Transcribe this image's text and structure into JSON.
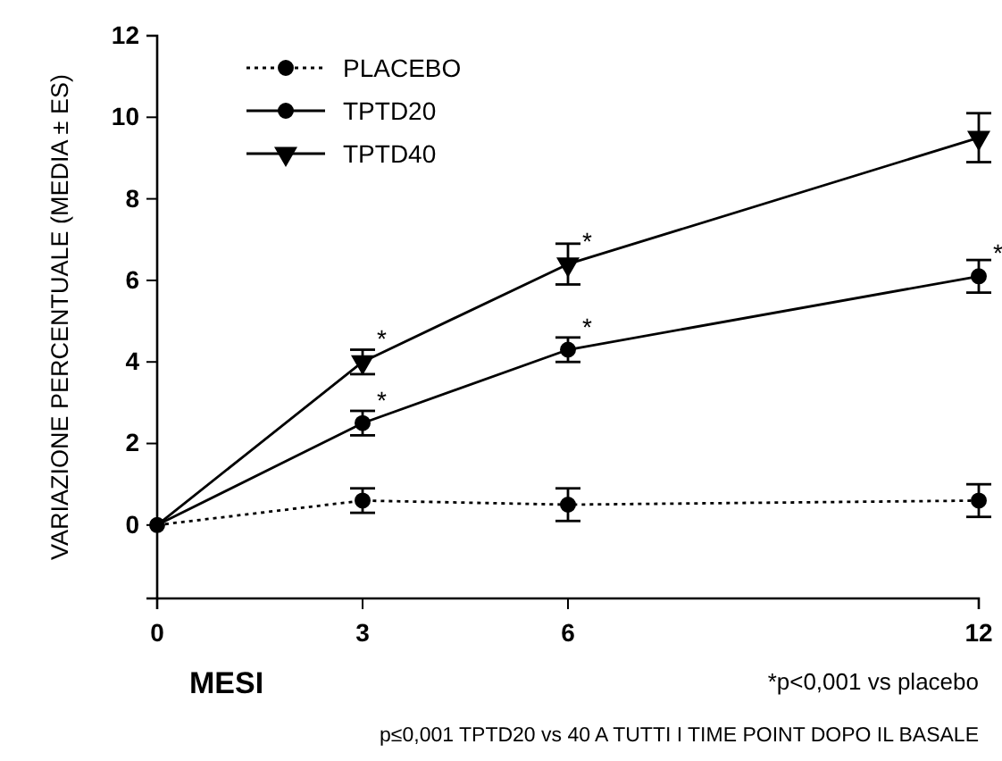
{
  "chart_data": {
    "type": "line",
    "xlabel": "MESI",
    "ylabel": "VARIAZIONE PERCENTUALE (MEDIA ± ES)",
    "x": [
      0,
      3,
      6,
      12
    ],
    "xlim": [
      0,
      12
    ],
    "xticks": [
      0,
      3,
      6,
      12
    ],
    "ylim": [
      -1.8,
      12
    ],
    "yticks": [
      0,
      2,
      4,
      6,
      8,
      10,
      12
    ],
    "grid": false,
    "legend": "top left",
    "series": [
      {
        "name": "PLACEBO",
        "color": "#000000",
        "marker": "circle",
        "line_style": "dotted",
        "values": [
          0,
          0.6,
          0.5,
          0.6
        ],
        "errors": [
          null,
          0.3,
          0.4,
          0.4
        ]
      },
      {
        "name": "TPTD20",
        "color": "#000000",
        "marker": "circle",
        "line_style": "solid",
        "values": [
          0,
          2.5,
          4.3,
          6.1
        ],
        "errors": [
          null,
          0.3,
          0.3,
          0.4
        ]
      },
      {
        "name": "TPTD40",
        "color": "#000000",
        "marker": "triangle",
        "line_style": "solid",
        "values": [
          0,
          4.0,
          6.4,
          9.5
        ],
        "errors": [
          null,
          0.3,
          0.5,
          0.6
        ]
      }
    ],
    "annotations": [
      {
        "text": "*",
        "x": 3,
        "y": 4.0
      },
      {
        "text": "*",
        "x": 6,
        "y": 6.4
      },
      {
        "text": "*",
        "x": 3,
        "y": 2.5
      },
      {
        "text": "*",
        "x": 6,
        "y": 4.3
      },
      {
        "text": "*",
        "x": 12,
        "y": 6.1
      },
      "*p<0,001 vs placebo",
      "p≤0,001 TPTD20 vs 40 A TUTTI I TIME POINT DOPO IL BASALE"
    ]
  }
}
